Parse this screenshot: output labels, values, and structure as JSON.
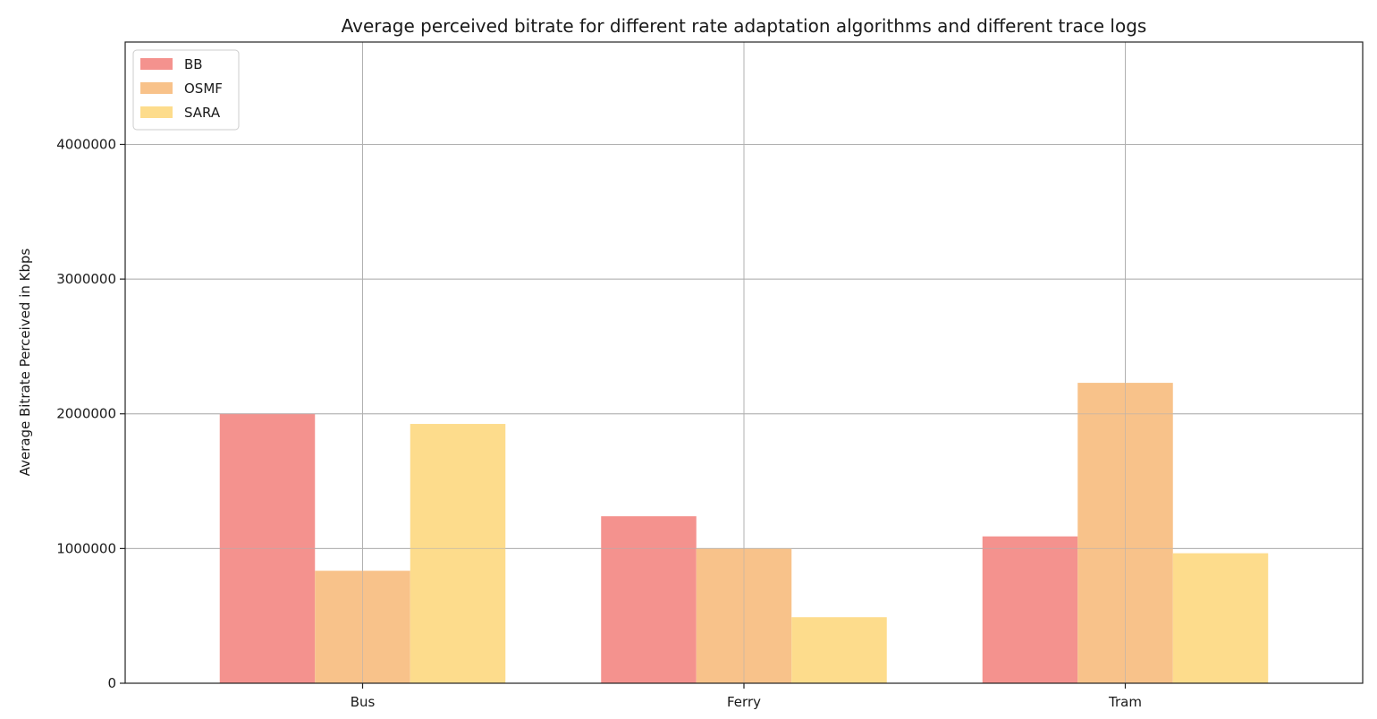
{
  "chart_data": {
    "type": "bar",
    "title": "Average perceived bitrate for different rate adaptation algorithms and different trace logs",
    "xlabel": "",
    "ylabel": "Average Bitrate Perceived in Kbps",
    "categories": [
      "Bus",
      "Ferry",
      "Tram"
    ],
    "series": [
      {
        "name": "BB",
        "color": "#f4928e",
        "values": [
          2000000,
          1240000,
          1090000
        ]
      },
      {
        "name": "OSMF",
        "color": "#f8c28a",
        "values": [
          835000,
          1000000,
          2230000
        ]
      },
      {
        "name": "SARA",
        "color": "#fddc8c",
        "values": [
          1925000,
          490000,
          965000
        ]
      }
    ],
    "ylim": [
      0,
      4760000
    ],
    "yticks": [
      0,
      1000000,
      2000000,
      3000000,
      4000000
    ],
    "ytick_labels": [
      "0",
      "1000000",
      "2000000",
      "3000000",
      "4000000"
    ],
    "grid": true,
    "legend_position": "top-left"
  }
}
